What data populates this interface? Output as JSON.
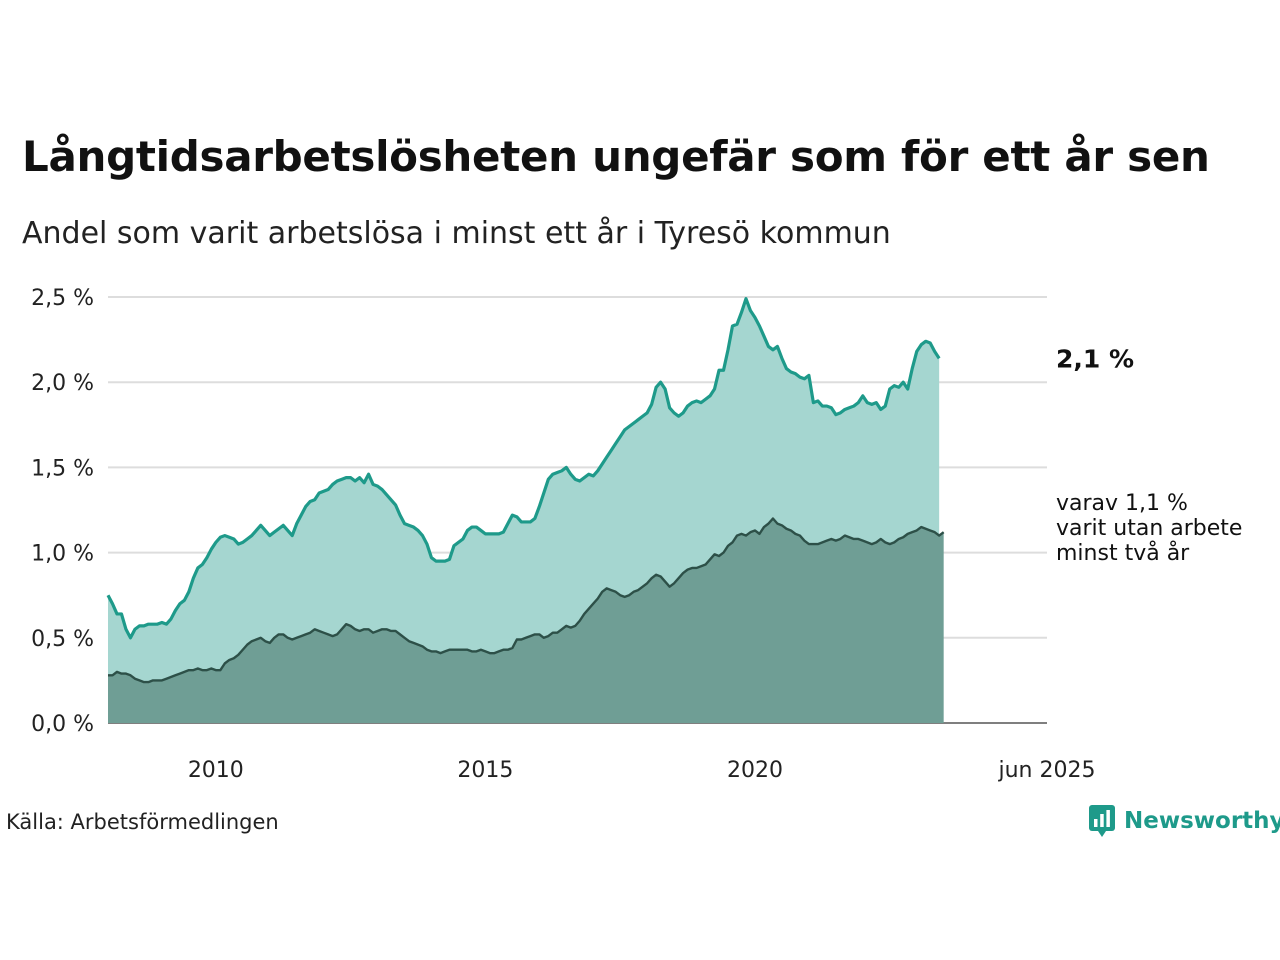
{
  "title": "Långtidsarbetslösheten ungefär som för ett år sen",
  "subtitle": "Andel som varit arbetslösa i minst ett år i Tyresö kommun",
  "source": "Källa: Arbetsförmedlingen",
  "brand": "Newsworthy",
  "colors": {
    "area_main": "#a5d6d0",
    "line_main": "#1e9a8a",
    "area_sub": "#6f9e95",
    "line_sub": "#2d5048",
    "grid": "#dddddd",
    "brand": "#1e9a8a"
  },
  "labels": {
    "end_main": "2,1 %",
    "end_sub_lines": [
      "varav 1,1 %",
      "varit utan arbete",
      "minst två år"
    ]
  },
  "chart_data": {
    "type": "area",
    "x_start": "2008-01",
    "x_end": "2025-06",
    "frequency": "monthly",
    "ylim": [
      0,
      2.5
    ],
    "y_ticks": [
      0,
      0.5,
      1.0,
      1.5,
      2.0,
      2.5
    ],
    "y_tick_labels": [
      "0,0 %",
      "0,5 %",
      "1,0 %",
      "1,5 %",
      "2,0 %",
      "2,5 %"
    ],
    "x_ticks": [
      {
        "date": "2010-01",
        "label": "2010"
      },
      {
        "date": "2015-01",
        "label": "2015"
      },
      {
        "date": "2020-01",
        "label": "2020"
      },
      {
        "date": "2025-06",
        "label": "jun 2025"
      }
    ],
    "grid": true,
    "series": [
      {
        "key": "main",
        "values": [
          0.75,
          0.7,
          0.64,
          0.64,
          0.55,
          0.5,
          0.55,
          0.57,
          0.57,
          0.58,
          0.58,
          0.58,
          0.59,
          0.58,
          0.61,
          0.66,
          0.7,
          0.72,
          0.77,
          0.85,
          0.91,
          0.93,
          0.97,
          1.02,
          1.06,
          1.09,
          1.1,
          1.09,
          1.08,
          1.05,
          1.06,
          1.08,
          1.1,
          1.13,
          1.16,
          1.13,
          1.1,
          1.12,
          1.14,
          1.16,
          1.13,
          1.1,
          1.17,
          1.22,
          1.27,
          1.3,
          1.31,
          1.35,
          1.36,
          1.37,
          1.4,
          1.42,
          1.43,
          1.44,
          1.44,
          1.42,
          1.44,
          1.41,
          1.46,
          1.4,
          1.39,
          1.37,
          1.34,
          1.31,
          1.28,
          1.22,
          1.17,
          1.16,
          1.15,
          1.13,
          1.1,
          1.05,
          0.97,
          0.95,
          0.95,
          0.95,
          0.96,
          1.04,
          1.06,
          1.08,
          1.13,
          1.15,
          1.15,
          1.13,
          1.11,
          1.11,
          1.11,
          1.11,
          1.12,
          1.17,
          1.22,
          1.21,
          1.18,
          1.18,
          1.18,
          1.2,
          1.27,
          1.35,
          1.43,
          1.46,
          1.47,
          1.48,
          1.5,
          1.46,
          1.43,
          1.42,
          1.44,
          1.46,
          1.45,
          1.48,
          1.52,
          1.56,
          1.6,
          1.64,
          1.68,
          1.72,
          1.74,
          1.76,
          1.78,
          1.8,
          1.82,
          1.87,
          1.97,
          2.0,
          1.96,
          1.85,
          1.82,
          1.8,
          1.82,
          1.86,
          1.88,
          1.89,
          1.88,
          1.9,
          1.92,
          1.96,
          2.07,
          2.07,
          2.19,
          2.33,
          2.34,
          2.41,
          2.49,
          2.42,
          2.38,
          2.33,
          2.27,
          2.21,
          2.19,
          2.21,
          2.14,
          2.08,
          2.06,
          2.05,
          2.03,
          2.02,
          2.04,
          1.88,
          1.89,
          1.86,
          1.86,
          1.85,
          1.81,
          1.82,
          1.84,
          1.85,
          1.86,
          1.88,
          1.92,
          1.88,
          1.87,
          1.88,
          1.84,
          1.86,
          1.96,
          1.98,
          1.97,
          2.0,
          1.96,
          2.08,
          2.18,
          2.22,
          2.24,
          2.23,
          2.18,
          2.14
        ]
      },
      {
        "key": "sub",
        "values": [
          0.28,
          0.28,
          0.3,
          0.29,
          0.29,
          0.28,
          0.26,
          0.25,
          0.24,
          0.24,
          0.25,
          0.25,
          0.25,
          0.26,
          0.27,
          0.28,
          0.29,
          0.3,
          0.31,
          0.31,
          0.32,
          0.31,
          0.31,
          0.32,
          0.31,
          0.31,
          0.35,
          0.37,
          0.38,
          0.4,
          0.43,
          0.46,
          0.48,
          0.49,
          0.5,
          0.48,
          0.47,
          0.5,
          0.52,
          0.52,
          0.5,
          0.49,
          0.5,
          0.51,
          0.52,
          0.53,
          0.55,
          0.54,
          0.53,
          0.52,
          0.51,
          0.52,
          0.55,
          0.58,
          0.57,
          0.55,
          0.54,
          0.55,
          0.55,
          0.53,
          0.54,
          0.55,
          0.55,
          0.54,
          0.54,
          0.52,
          0.5,
          0.48,
          0.47,
          0.46,
          0.45,
          0.43,
          0.42,
          0.42,
          0.41,
          0.42,
          0.43,
          0.43,
          0.43,
          0.43,
          0.43,
          0.42,
          0.42,
          0.43,
          0.42,
          0.41,
          0.41,
          0.42,
          0.43,
          0.43,
          0.44,
          0.49,
          0.49,
          0.5,
          0.51,
          0.52,
          0.52,
          0.5,
          0.51,
          0.53,
          0.53,
          0.55,
          0.57,
          0.56,
          0.57,
          0.6,
          0.64,
          0.67,
          0.7,
          0.73,
          0.77,
          0.79,
          0.78,
          0.77,
          0.75,
          0.74,
          0.75,
          0.77,
          0.78,
          0.8,
          0.82,
          0.85,
          0.87,
          0.86,
          0.83,
          0.8,
          0.82,
          0.85,
          0.88,
          0.9,
          0.91,
          0.91,
          0.92,
          0.93,
          0.96,
          0.99,
          0.98,
          1.0,
          1.04,
          1.06,
          1.1,
          1.11,
          1.1,
          1.12,
          1.13,
          1.11,
          1.15,
          1.17,
          1.2,
          1.17,
          1.16,
          1.14,
          1.13,
          1.11,
          1.1,
          1.07,
          1.05,
          1.05,
          1.05,
          1.06,
          1.07,
          1.08,
          1.07,
          1.08,
          1.1,
          1.09,
          1.08,
          1.08,
          1.07,
          1.06,
          1.05,
          1.06,
          1.08,
          1.06,
          1.05,
          1.06,
          1.08,
          1.09,
          1.11,
          1.12,
          1.13,
          1.15,
          1.14,
          1.13,
          1.12,
          1.1,
          1.12
        ]
      }
    ]
  }
}
